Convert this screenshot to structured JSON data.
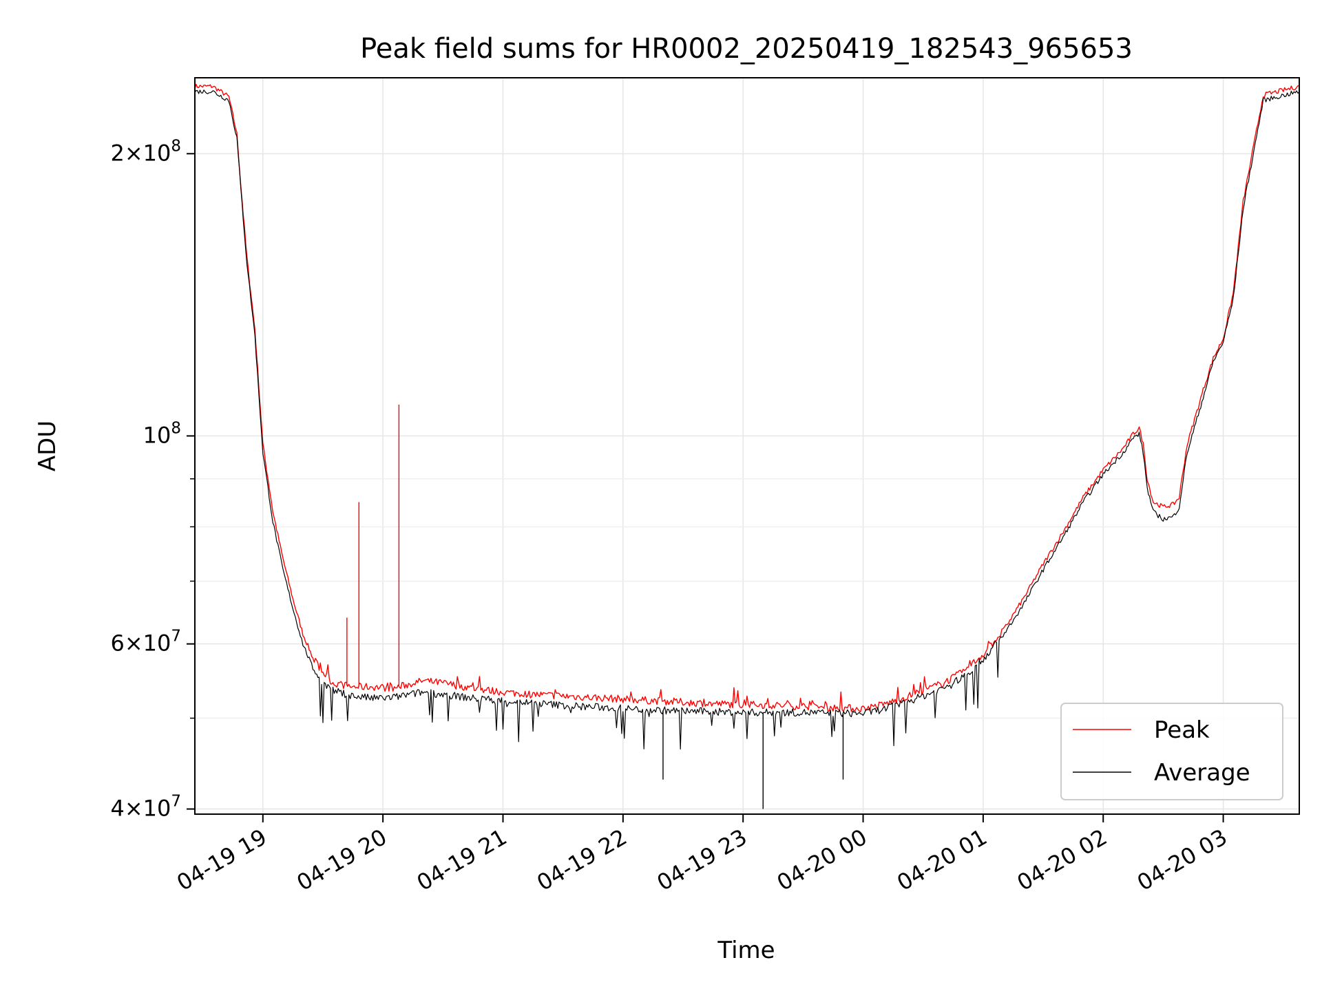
{
  "chart_data": {
    "type": "line",
    "title": "Peak field sums for HR0002_20250419_182543_965653",
    "xlabel": "Time",
    "ylabel": "ADU",
    "yscale": "log",
    "grid": true,
    "legend_placement": "lower-right",
    "xlim": [
      "2025-04-19 18:26",
      "2025-04-20 03:38"
    ],
    "ylim": [
      39500000,
      241000000
    ],
    "x_ticks": [
      {
        "value": "2025-04-19 19:00",
        "label": "04-19 19"
      },
      {
        "value": "2025-04-19 20:00",
        "label": "04-19 20"
      },
      {
        "value": "2025-04-19 21:00",
        "label": "04-19 21"
      },
      {
        "value": "2025-04-19 22:00",
        "label": "04-19 22"
      },
      {
        "value": "2025-04-19 23:00",
        "label": "04-19 23"
      },
      {
        "value": "2025-04-20 00:00",
        "label": "04-20 00"
      },
      {
        "value": "2025-04-20 01:00",
        "label": "04-20 01"
      },
      {
        "value": "2025-04-20 02:00",
        "label": "04-20 02"
      },
      {
        "value": "2025-04-20 03:00",
        "label": "04-20 03"
      }
    ],
    "y_major_ticks": [
      {
        "value": 40000000,
        "mant": "4",
        "exp": "7"
      },
      {
        "value": 60000000,
        "mant": "6",
        "exp": "7"
      },
      {
        "value": 100000000,
        "mant": "",
        "exp": "8"
      },
      {
        "value": 200000000,
        "mant": "2",
        "exp": "8"
      }
    ],
    "y_minor_ticks": [
      50000000,
      70000000,
      80000000,
      90000000
    ],
    "series": [
      {
        "name": "Peak",
        "color": "#ff0000",
        "x": [
          "2025-04-19 18:26",
          "2025-04-19 18:35",
          "2025-04-19 18:43",
          "2025-04-19 18:47",
          "2025-04-19 18:49",
          "2025-04-19 18:52",
          "2025-04-19 18:56",
          "2025-04-19 19:00",
          "2025-04-19 19:05",
          "2025-04-19 19:10",
          "2025-04-19 19:15",
          "2025-04-19 19:20",
          "2025-04-19 19:25",
          "2025-04-19 19:30",
          "2025-04-19 19:35",
          "2025-04-19 19:45",
          "2025-04-19 19:55",
          "2025-04-19 20:05",
          "2025-04-19 20:20",
          "2025-04-19 20:30",
          "2025-04-19 20:45",
          "2025-04-19 21:00",
          "2025-04-19 21:15",
          "2025-04-19 21:30",
          "2025-04-19 21:45",
          "2025-04-19 22:00",
          "2025-04-19 22:15",
          "2025-04-19 22:30",
          "2025-04-19 22:45",
          "2025-04-19 23:00",
          "2025-04-19 23:15",
          "2025-04-19 23:30",
          "2025-04-19 23:45",
          "2025-04-20 00:00",
          "2025-04-20 00:10",
          "2025-04-20 00:20",
          "2025-04-20 00:30",
          "2025-04-20 00:40",
          "2025-04-20 00:50",
          "2025-04-20 01:00",
          "2025-04-20 01:10",
          "2025-04-20 01:20",
          "2025-04-20 01:30",
          "2025-04-20 01:40",
          "2025-04-20 01:50",
          "2025-04-20 02:00",
          "2025-04-20 02:10",
          "2025-04-20 02:15",
          "2025-04-20 02:18",
          "2025-04-20 02:20",
          "2025-04-20 02:22",
          "2025-04-20 02:25",
          "2025-04-20 02:30",
          "2025-04-20 02:35",
          "2025-04-20 02:38",
          "2025-04-20 02:40",
          "2025-04-20 02:42",
          "2025-04-20 02:45",
          "2025-04-20 02:50",
          "2025-04-20 02:55",
          "2025-04-20 03:00",
          "2025-04-20 03:05",
          "2025-04-20 03:10",
          "2025-04-20 03:20",
          "2025-04-20 03:38"
        ],
        "y": [
          236000000,
          236000000,
          230000000,
          210000000,
          185000000,
          155000000,
          130000000,
          98000000,
          83000000,
          74000000,
          67000000,
          61500000,
          58000000,
          56000000,
          54500000,
          54000000,
          54000000,
          53800000,
          54800000,
          54500000,
          53800000,
          53300000,
          53000000,
          52800000,
          52600000,
          52400000,
          52200000,
          52000000,
          51800000,
          51700000,
          51600000,
          51500000,
          51300000,
          51200000,
          51700000,
          52500000,
          53500000,
          54500000,
          56000000,
          58500000,
          62000000,
          67000000,
          73000000,
          79000000,
          86000000,
          92000000,
          97000000,
          100500000,
          102000000,
          98000000,
          90000000,
          85000000,
          84000000,
          84500000,
          86000000,
          92000000,
          98000000,
          103000000,
          112000000,
          121000000,
          127000000,
          142000000,
          178000000,
          231000000,
          236000000
        ]
      },
      {
        "name": "Average",
        "color": "#000000",
        "x": [
          "2025-04-19 18:26",
          "2025-04-19 18:35",
          "2025-04-19 18:43",
          "2025-04-19 18:47",
          "2025-04-19 18:49",
          "2025-04-19 18:52",
          "2025-04-19 18:56",
          "2025-04-19 19:00",
          "2025-04-19 19:05",
          "2025-04-19 19:10",
          "2025-04-19 19:15",
          "2025-04-19 19:20",
          "2025-04-19 19:25",
          "2025-04-19 19:30",
          "2025-04-19 19:35",
          "2025-04-19 19:45",
          "2025-04-19 19:55",
          "2025-04-19 20:05",
          "2025-04-19 20:20",
          "2025-04-19 20:30",
          "2025-04-19 20:45",
          "2025-04-19 21:00",
          "2025-04-19 21:15",
          "2025-04-19 21:30",
          "2025-04-19 21:45",
          "2025-04-19 22:00",
          "2025-04-19 22:15",
          "2025-04-19 22:30",
          "2025-04-19 22:45",
          "2025-04-19 23:00",
          "2025-04-19 23:15",
          "2025-04-19 23:30",
          "2025-04-19 23:45",
          "2025-04-20 00:00",
          "2025-04-20 00:10",
          "2025-04-20 00:20",
          "2025-04-20 00:30",
          "2025-04-20 00:40",
          "2025-04-20 00:50",
          "2025-04-20 01:00",
          "2025-04-20 01:10",
          "2025-04-20 01:20",
          "2025-04-20 01:30",
          "2025-04-20 01:40",
          "2025-04-20 01:50",
          "2025-04-20 02:00",
          "2025-04-20 02:10",
          "2025-04-20 02:15",
          "2025-04-20 02:18",
          "2025-04-20 02:20",
          "2025-04-20 02:22",
          "2025-04-20 02:25",
          "2025-04-20 02:30",
          "2025-04-20 02:35",
          "2025-04-20 02:38",
          "2025-04-20 02:40",
          "2025-04-20 02:42",
          "2025-04-20 02:45",
          "2025-04-20 02:50",
          "2025-04-20 02:55",
          "2025-04-20 03:00",
          "2025-04-20 03:05",
          "2025-04-20 03:10",
          "2025-04-20 03:20",
          "2025-04-20 03:38"
        ],
        "y": [
          233000000,
          233000000,
          228000000,
          208000000,
          183000000,
          153000000,
          128000000,
          96000000,
          81000000,
          72000000,
          65500000,
          60000000,
          56500000,
          54500000,
          53500000,
          52800000,
          52500000,
          52600000,
          53300000,
          53000000,
          52500000,
          52200000,
          51900000,
          51600000,
          51400000,
          51200000,
          51000000,
          50900000,
          50800000,
          50700000,
          50700000,
          50700000,
          50600000,
          50600000,
          51100000,
          51900000,
          52800000,
          53800000,
          55300000,
          57800000,
          61300000,
          66000000,
          72000000,
          78000000,
          85000000,
          91000000,
          96000000,
          99500000,
          100500000,
          96000000,
          88000000,
          83000000,
          81500000,
          82000000,
          84000000,
          90000000,
          96000000,
          101000000,
          110000000,
          120000000,
          126000000,
          140000000,
          175000000,
          228000000,
          233000000
        ]
      }
    ],
    "spikes": [
      {
        "x": "2025-04-19 19:42",
        "y": 64000000,
        "series": "Peak"
      },
      {
        "x": "2025-04-19 19:48",
        "y": 85000000,
        "series": "Peak"
      },
      {
        "x": "2025-04-19 20:08",
        "y": 108000000,
        "series": "Peak"
      },
      {
        "x": "2025-04-19 22:20",
        "y": 43000000,
        "series": "Average"
      },
      {
        "x": "2025-04-19 23:10",
        "y": 40000000,
        "series": "Average"
      },
      {
        "x": "2025-04-19 23:50",
        "y": 43000000,
        "series": "Average"
      }
    ]
  }
}
